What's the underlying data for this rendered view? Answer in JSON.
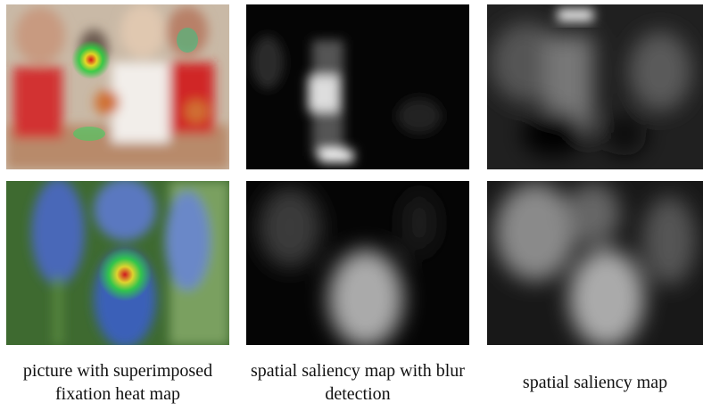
{
  "captions": [
    "picture with superimposed fixation heat map",
    "spatial saliency map with blur detection",
    "spatial saliency map"
  ]
}
